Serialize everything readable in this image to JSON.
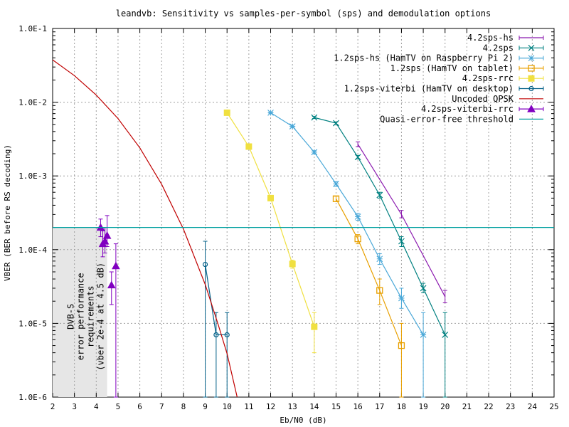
{
  "chart_data": {
    "type": "line",
    "title": "leandvb: Sensitivity vs samples-per-symbol (sps) and demodulation options",
    "xlabel": "Eb/N0 (dB)",
    "ylabel": "VBER (BER before RS decoding)",
    "xlim": [
      2,
      25
    ],
    "ylim": [
      1e-06,
      0.1
    ],
    "yscale": "log",
    "grid": true,
    "legend_position": "top-right",
    "x_ticks": [
      "2",
      "3",
      "4",
      "5",
      "6",
      "7",
      "8",
      "9",
      "10",
      "11",
      "12",
      "13",
      "14",
      "15",
      "16",
      "17",
      "18",
      "19",
      "20",
      "21",
      "22",
      "23",
      "24",
      "25"
    ],
    "y_ticks": [
      "1.0E-6",
      "1.0E-5",
      "1.0E-4",
      "1.0E-3",
      "1.0E-2",
      "1.0E-1"
    ],
    "series": [
      {
        "name": "4.2sps-hs",
        "color": "#8b1aaf",
        "marker": "errorbar",
        "points": [
          {
            "x": 16,
            "y": 0.0027,
            "lo": 0.0025,
            "hi": 0.0029
          },
          {
            "x": 18,
            "y": 0.0003,
            "lo": 0.00027,
            "hi": 0.00034
          },
          {
            "x": 20,
            "y": 2.3e-05,
            "lo": 1.9e-05,
            "hi": 2.8e-05
          }
        ]
      },
      {
        "name": "4.2sps",
        "color": "#008080",
        "marker": "x",
        "points": [
          {
            "x": 14,
            "y": 0.0062,
            "lo": 0.006,
            "hi": 0.0064
          },
          {
            "x": 15,
            "y": 0.0052,
            "lo": 0.005,
            "hi": 0.0054
          },
          {
            "x": 16,
            "y": 0.0018,
            "lo": 0.0017,
            "hi": 0.0019
          },
          {
            "x": 17,
            "y": 0.00055,
            "lo": 0.0005,
            "hi": 0.0006
          },
          {
            "x": 18,
            "y": 0.00013,
            "lo": 0.00011,
            "hi": 0.00015
          },
          {
            "x": 19,
            "y": 3e-05,
            "lo": 2.6e-05,
            "hi": 3.5e-05
          },
          {
            "x": 20,
            "y": 7e-06,
            "lo": 1e-06,
            "hi": 1.4e-05
          }
        ]
      },
      {
        "name": "1.2sps-hs (HamTV on Raspberry Pi 2)",
        "color": "#4aa8d8",
        "marker": "star",
        "points": [
          {
            "x": 12,
            "y": 0.0072,
            "lo": 0.007,
            "hi": 0.0074
          },
          {
            "x": 13,
            "y": 0.0047,
            "lo": 0.0045,
            "hi": 0.0049
          },
          {
            "x": 14,
            "y": 0.0021,
            "lo": 0.002,
            "hi": 0.0022
          },
          {
            "x": 15,
            "y": 0.00078,
            "lo": 0.00072,
            "hi": 0.00084
          },
          {
            "x": 16,
            "y": 0.00028,
            "lo": 0.00025,
            "hi": 0.00031
          },
          {
            "x": 17,
            "y": 7.5e-05,
            "lo": 6.3e-05,
            "hi": 8.8e-05
          },
          {
            "x": 18,
            "y": 2.2e-05,
            "lo": 1.6e-05,
            "hi": 3e-05
          },
          {
            "x": 19,
            "y": 7e-06,
            "lo": 1e-06,
            "hi": 1.4e-05
          }
        ]
      },
      {
        "name": "1.2sps (HamTV on tablet)",
        "color": "#e8a000",
        "marker": "square",
        "points": [
          {
            "x": 15,
            "y": 0.00049,
            "lo": 0.00045,
            "hi": 0.00053
          },
          {
            "x": 16,
            "y": 0.00014,
            "lo": 0.00012,
            "hi": 0.00016
          },
          {
            "x": 17,
            "y": 2.8e-05,
            "lo": 1.8e-05,
            "hi": 4e-05
          },
          {
            "x": 18,
            "y": 5e-06,
            "lo": 1e-06,
            "hi": 1e-05
          }
        ]
      },
      {
        "name": "4.2sps-rrc",
        "color": "#f0e040",
        "marker": "filled-square",
        "points": [
          {
            "x": 10,
            "y": 0.0072,
            "lo": 0.0071,
            "hi": 0.0073
          },
          {
            "x": 11,
            "y": 0.0025,
            "lo": 0.0024,
            "hi": 0.0026
          },
          {
            "x": 12,
            "y": 0.0005,
            "lo": 0.00047,
            "hi": 0.00053
          },
          {
            "x": 13,
            "y": 6.4e-05,
            "lo": 5.6e-05,
            "hi": 7.2e-05
          },
          {
            "x": 14,
            "y": 9e-06,
            "lo": 4e-06,
            "hi": 1.4e-05
          }
        ]
      },
      {
        "name": "1.2sps-viterbi (HamTV on desktop)",
        "color": "#005f87",
        "marker": "circle",
        "points": [
          {
            "x": 9,
            "y": 6.3e-05,
            "lo": 1e-06,
            "hi": 0.00013
          },
          {
            "x": 9.5,
            "y": 7e-06,
            "lo": 1e-06,
            "hi": 1.4e-05
          },
          {
            "x": 10,
            "y": 7e-06,
            "lo": 1e-06,
            "hi": 1.4e-05
          }
        ]
      },
      {
        "name": "Uncoded QPSK",
        "color": "#c00000",
        "marker": "none",
        "points": [
          {
            "x": 2,
            "y": 0.0375
          },
          {
            "x": 3,
            "y": 0.0229
          },
          {
            "x": 4,
            "y": 0.0125
          },
          {
            "x": 5,
            "y": 0.006
          },
          {
            "x": 6,
            "y": 0.0024
          },
          {
            "x": 7,
            "y": 0.00077
          },
          {
            "x": 8,
            "y": 0.00019
          },
          {
            "x": 9,
            "y": 3.36e-05
          },
          {
            "x": 9.6,
            "y": 9.5e-06
          },
          {
            "x": 10,
            "y": 3.9e-06
          },
          {
            "x": 10.5,
            "y": 9e-07
          }
        ]
      },
      {
        "name": "4.2sps-viterbi-rrc",
        "color": "#8000c0",
        "marker": "triangle",
        "no_line": true,
        "points": [
          {
            "x": 4.2,
            "y": 0.0002,
            "lo": 0.00015,
            "hi": 0.00026
          },
          {
            "x": 4.3,
            "y": 0.00012,
            "lo": 8e-05,
            "hi": 0.00018
          },
          {
            "x": 4.4,
            "y": 0.00013,
            "lo": 9e-05,
            "hi": 0.0002
          },
          {
            "x": 4.5,
            "y": 0.000155,
            "lo": 0.00011,
            "hi": 0.00029
          },
          {
            "x": 4.7,
            "y": 3.3e-05,
            "lo": 1.8e-05,
            "hi": 5e-05
          },
          {
            "x": 4.9,
            "y": 6e-05,
            "lo": 1e-06,
            "hi": 0.00012
          }
        ]
      },
      {
        "name": "Quasi-error-free threshold",
        "color": "#00a0a0",
        "marker": "none",
        "hline": 0.0002
      }
    ],
    "annotation": {
      "lines": [
        "DVB-S",
        "error performance",
        "requirements",
        "(vber 2e-4 at 4.5 dB)"
      ],
      "region": {
        "x": [
          2,
          4.5
        ],
        "y": [
          1e-06,
          0.0002
        ]
      }
    }
  }
}
